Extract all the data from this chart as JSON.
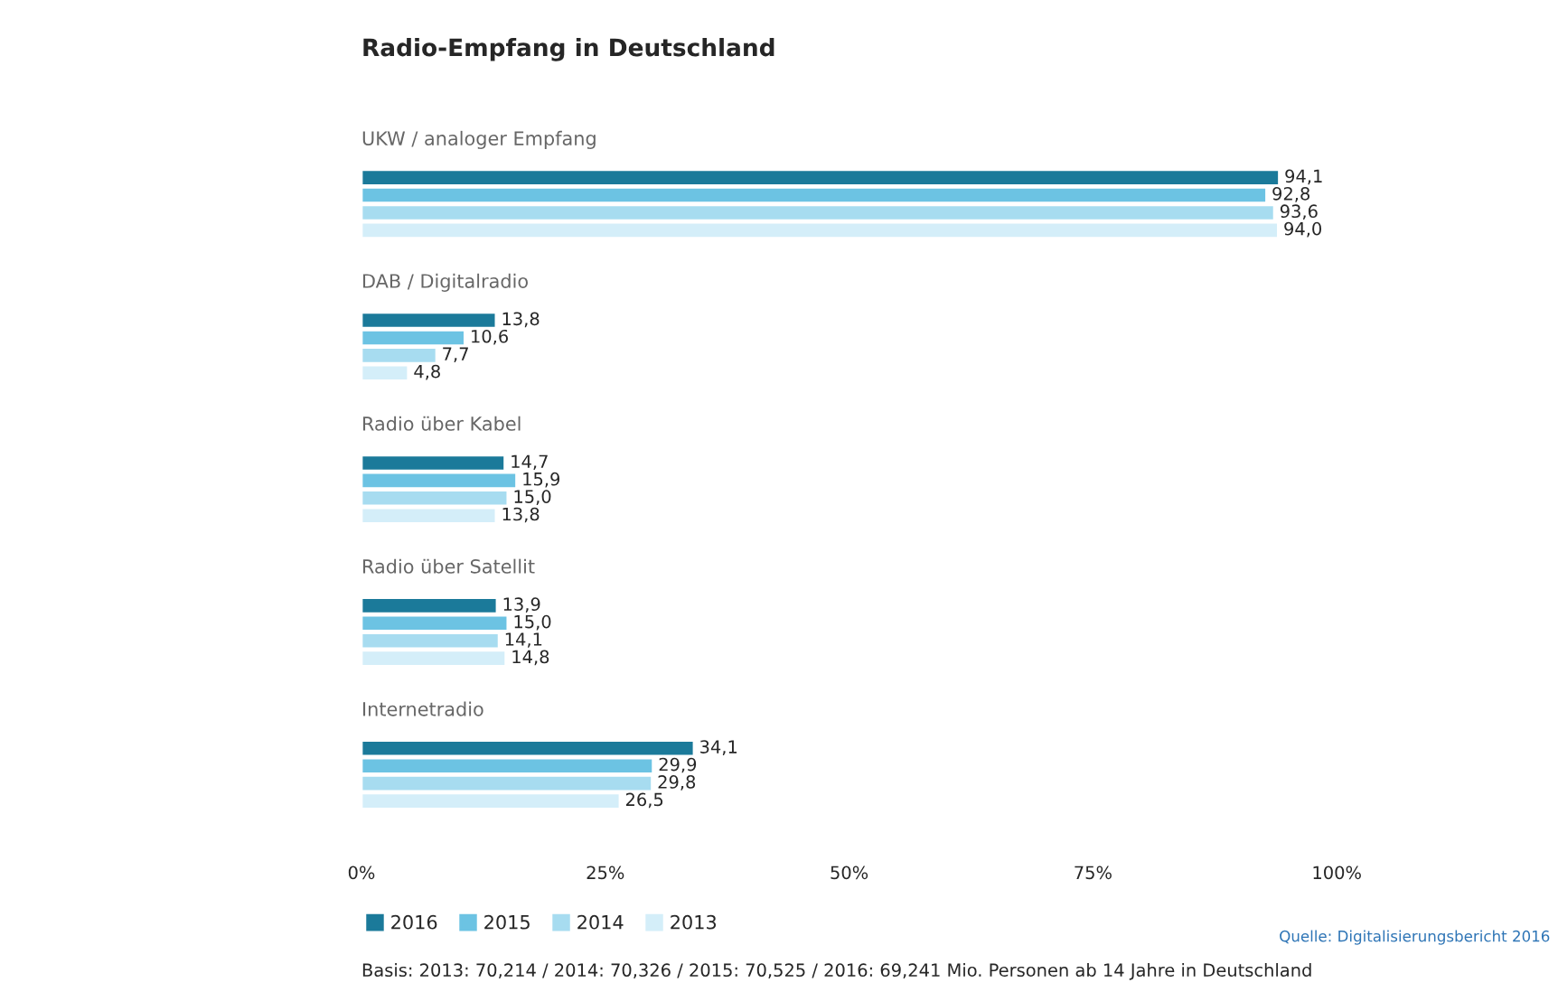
{
  "chart_data": {
    "type": "bar",
    "orientation": "horizontal",
    "title": "Radio-Empfang in Deutschland",
    "categories": [
      "UKW / analoger Empfang",
      "DAB / Digitalradio",
      "Radio über Kabel",
      "Radio über Satellit",
      "Internetradio"
    ],
    "series": [
      {
        "name": "2016",
        "color": "#1b7a9a",
        "values": [
          94.1,
          13.8,
          14.7,
          13.9,
          34.1
        ],
        "value_labels": [
          "94,1",
          "13,8",
          "14,7",
          "13,9",
          "34,1"
        ]
      },
      {
        "name": "2015",
        "color": "#6cc3e3",
        "values": [
          92.8,
          10.6,
          15.9,
          15.0,
          29.9
        ],
        "value_labels": [
          "92,8",
          "10,6",
          "15,9",
          "15,0",
          "29,9"
        ]
      },
      {
        "name": "2014",
        "color": "#a7dcf0",
        "values": [
          93.6,
          7.7,
          15.0,
          14.1,
          29.8
        ],
        "value_labels": [
          "93,6",
          "7,7",
          "15,0",
          "14,1",
          "29,8"
        ]
      },
      {
        "name": "2013",
        "color": "#d4eef9",
        "values": [
          94.0,
          4.8,
          13.8,
          14.8,
          26.5
        ],
        "value_labels": [
          "94,0",
          "4,8",
          "13,8",
          "14,8",
          "26,5"
        ]
      }
    ],
    "xlim": [
      0,
      100
    ],
    "xticks": [
      {
        "value": 0,
        "label": "0%"
      },
      {
        "value": 25,
        "label": "25%"
      },
      {
        "value": 50,
        "label": "50%"
      },
      {
        "value": 75,
        "label": "75%"
      },
      {
        "value": 100,
        "label": "100%"
      }
    ],
    "grid": false,
    "legend": "bottom left",
    "annotations": [
      "Quelle: Digitalisierungsbericht 2016",
      "Basis: 2013: 70,214 / 2014: 70,326 / 2015: 70,525 / 2016: 69,241 Mio. Personen ab 14 Jahre in Deutschland"
    ]
  }
}
